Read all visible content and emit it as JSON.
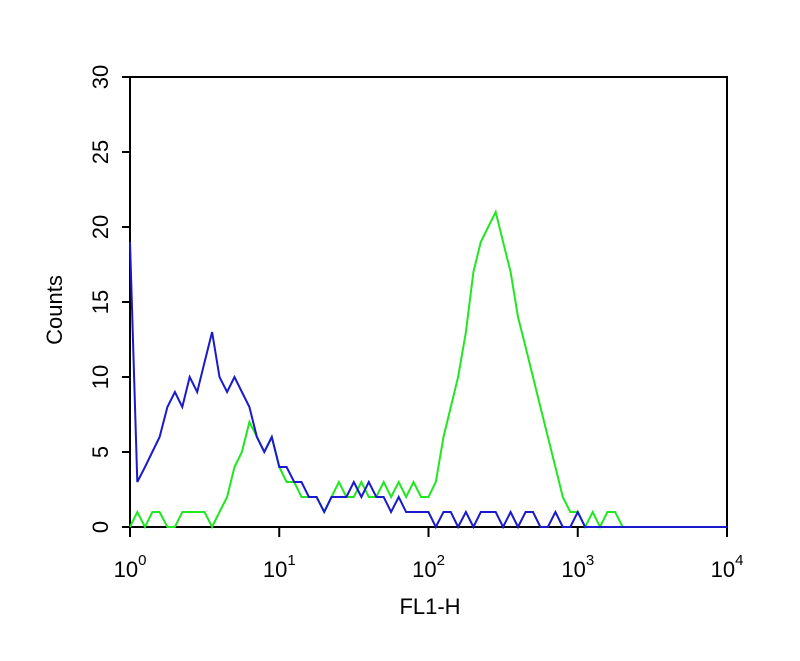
{
  "chart_data": {
    "type": "line",
    "xlabel": "FL1-H",
    "ylabel": "Counts",
    "xscale": "log",
    "x": [
      1,
      1.12,
      1.26,
      1.41,
      1.58,
      1.78,
      2,
      2.24,
      2.51,
      2.82,
      3.16,
      3.55,
      3.98,
      4.47,
      5.01,
      5.62,
      6.31,
      7.08,
      7.94,
      8.91,
      10,
      11.2,
      12.6,
      14.1,
      15.8,
      17.8,
      20,
      22.4,
      25.1,
      28.2,
      31.6,
      35.5,
      39.8,
      44.7,
      50.1,
      56.2,
      63.1,
      70.8,
      79.4,
      89.1,
      100,
      112,
      126,
      141,
      158,
      178,
      200,
      224,
      251,
      282,
      316,
      355,
      398,
      447,
      501,
      562,
      631,
      708,
      794,
      891,
      1000,
      1120,
      1260,
      1410,
      1580,
      1780,
      2000,
      2240,
      2510,
      2820,
      3160,
      5010,
      10000
    ],
    "series": [
      {
        "color": "#22e622",
        "values": [
          0,
          1,
          0,
          1,
          1,
          0,
          0,
          1,
          1,
          1,
          1,
          0,
          1,
          2,
          4,
          5,
          7,
          6,
          5,
          6,
          4,
          3,
          3,
          2,
          2,
          2,
          1,
          2,
          3,
          2,
          2,
          3,
          2,
          2,
          3,
          2,
          3,
          2,
          3,
          2,
          2,
          3,
          6,
          8,
          10,
          13,
          17,
          19,
          20,
          21,
          19,
          17,
          14,
          12,
          10,
          8,
          6,
          4,
          2,
          1,
          1,
          0,
          1,
          0,
          1,
          1,
          0,
          0,
          0,
          0,
          0,
          0,
          0
        ]
      },
      {
        "color": "#1a1acc",
        "values": [
          19,
          3,
          4,
          5,
          6,
          8,
          9,
          8,
          10,
          9,
          11,
          13,
          10,
          9,
          10,
          9,
          8,
          6,
          5,
          6,
          4,
          4,
          3,
          3,
          2,
          2,
          1,
          2,
          2,
          2,
          3,
          2,
          3,
          2,
          2,
          1,
          2,
          1,
          1,
          1,
          1,
          0,
          1,
          1,
          0,
          1,
          0,
          1,
          1,
          1,
          0,
          1,
          0,
          1,
          1,
          0,
          0,
          1,
          0,
          0,
          1,
          0,
          0,
          0,
          0,
          0,
          0,
          0,
          0,
          0,
          0,
          0,
          0
        ]
      }
    ],
    "xlim": [
      1,
      10000
    ],
    "xticks": [
      {
        "value": 1,
        "label": "10",
        "exponent": "0"
      },
      {
        "value": 10,
        "label": "10",
        "exponent": "1"
      },
      {
        "value": 100,
        "label": "10",
        "exponent": "2"
      },
      {
        "value": 1000,
        "label": "10",
        "exponent": "3"
      },
      {
        "value": 10000,
        "label": "10",
        "exponent": "4"
      }
    ],
    "ylim": [
      0,
      30
    ],
    "yticks": [
      0,
      5,
      10,
      15,
      20,
      25,
      30
    ]
  }
}
